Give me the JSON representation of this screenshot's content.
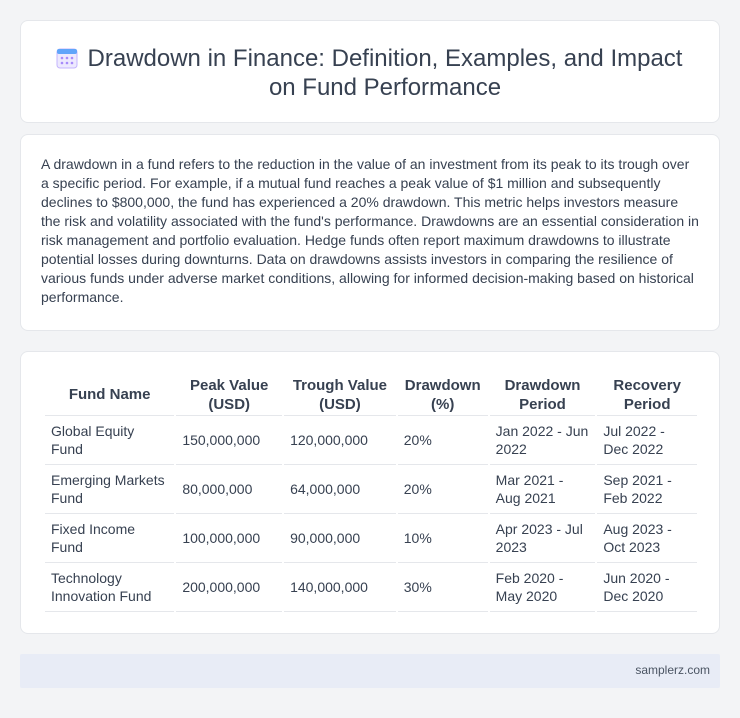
{
  "header": {
    "title": "Drawdown in Finance: Definition, Examples, and Impact on Fund Performance",
    "icon": "calendar-icon"
  },
  "intro": {
    "text": "A drawdown in a fund refers to the reduction in the value of an investment from its peak to its trough over a specific period. For example, if a mutual fund reaches a peak value of $1 million and subsequently declines to $800,000, the fund has experienced a 20% drawdown. This metric helps investors measure the risk and volatility associated with the fund's performance. Drawdowns are an essential consideration in risk management and portfolio evaluation. Hedge funds often report maximum drawdowns to illustrate potential losses during downturns. Data on drawdowns assists investors in comparing the resilience of various funds under adverse market conditions, allowing for informed decision-making based on historical performance."
  },
  "table": {
    "headers": [
      "Fund Name",
      "Peak Value (USD)",
      "Trough Value (USD)",
      "Drawdown (%)",
      "Drawdown Period",
      "Recovery Period"
    ],
    "rows": [
      [
        "Global Equity Fund",
        "150,000,000",
        "120,000,000",
        "20%",
        "Jan 2022 - Jun 2022",
        "Jul 2022 - Dec 2022"
      ],
      [
        "Emerging Markets Fund",
        "80,000,000",
        "64,000,000",
        "20%",
        "Mar 2021 - Aug 2021",
        "Sep 2021 - Feb 2022"
      ],
      [
        "Fixed Income Fund",
        "100,000,000",
        "90,000,000",
        "10%",
        "Apr 2023 - Jul 2023",
        "Aug 2023 - Oct 2023"
      ],
      [
        "Technology Innovation Fund",
        "200,000,000",
        "140,000,000",
        "30%",
        "Feb 2020 - May 2020",
        "Jun 2020 - Dec 2020"
      ]
    ]
  },
  "footer": {
    "site": "samplerz.com"
  },
  "colors": {
    "background": "#f3f4f6",
    "card": "#ffffff",
    "footer": "#e8ecf6",
    "icon_accent": "#a78bfa",
    "icon_header": "#60a5fa"
  }
}
